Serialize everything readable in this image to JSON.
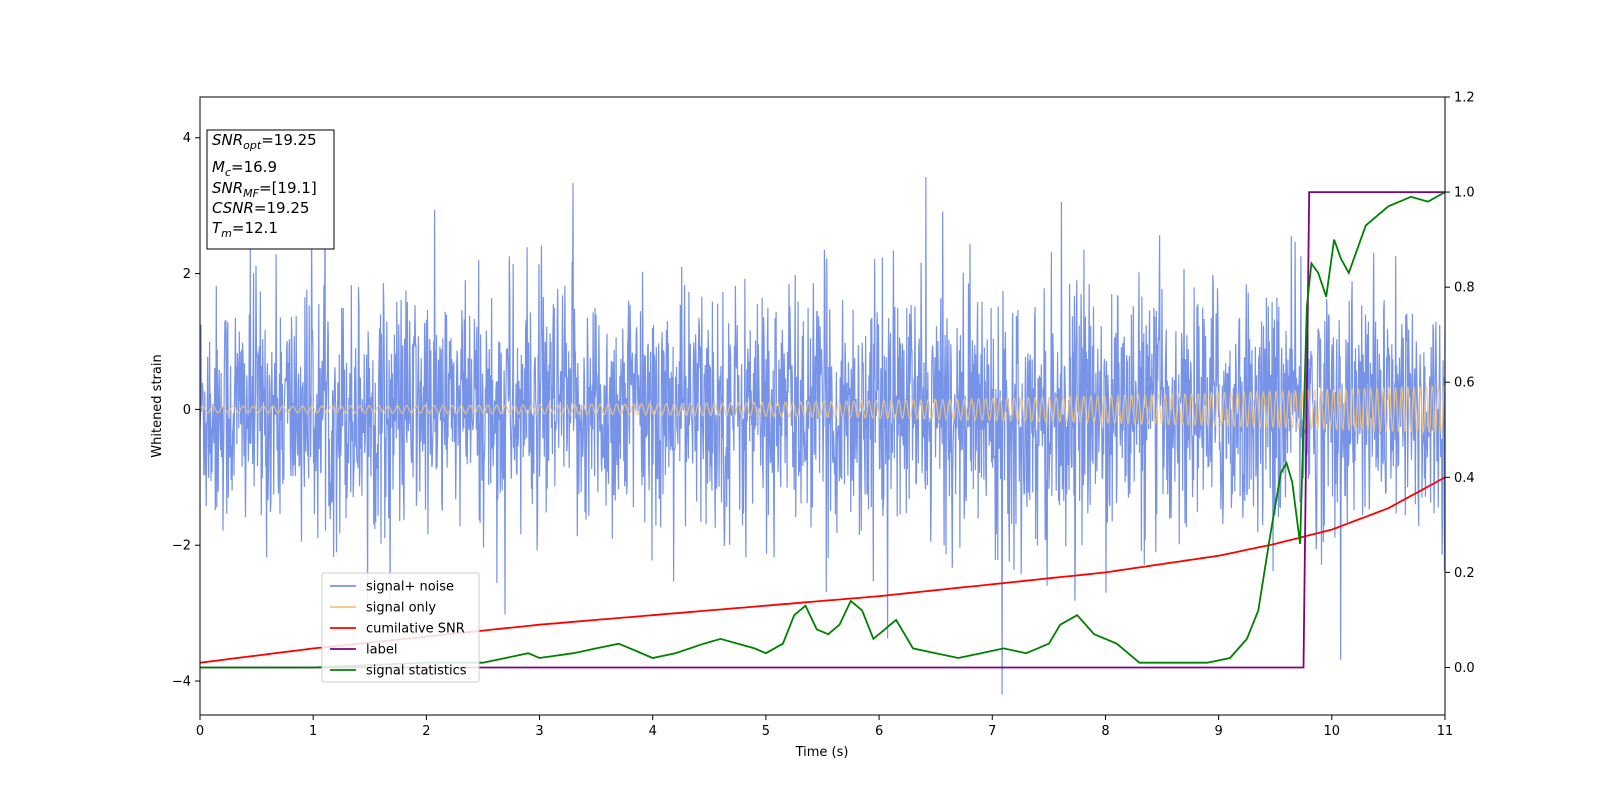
{
  "chart_data": {
    "type": "line",
    "xlabel": "Time (s)",
    "ylabel_left": "Whitened strain",
    "xlim": [
      0,
      11
    ],
    "ylim_left": [
      -4.5,
      4.6
    ],
    "ylim_right": [
      -0.1,
      1.2
    ],
    "x_ticks": [
      "0",
      "1",
      "2",
      "3",
      "4",
      "5",
      "6",
      "7",
      "8",
      "9",
      "10",
      "11"
    ],
    "y_left_ticks": [
      "−4",
      "−2",
      "0",
      "2",
      "4"
    ],
    "y_left_tick_values": [
      -4,
      -2,
      0,
      2,
      4
    ],
    "y_right_ticks": [
      "0.0",
      "0.2",
      "0.4",
      "0.6",
      "0.8",
      "1.0",
      "1.2"
    ],
    "y_right_tick_values": [
      0.0,
      0.2,
      0.4,
      0.6,
      0.8,
      1.0,
      1.2
    ],
    "grid": false,
    "legend_position": "lower-left",
    "annotation_box": {
      "lines": [
        {
          "base": "SNR",
          "sub": "opt",
          "value": "=19.25"
        },
        {
          "base": "M",
          "sub": "c",
          "value": "=16.9"
        },
        {
          "base": "SNR",
          "sub": "MF",
          "value": "=[19.1]"
        },
        {
          "base": "CSNR",
          "sub": "",
          "value": "=19.25"
        },
        {
          "base": "T",
          "sub": "m",
          "value": "=12.1"
        }
      ]
    },
    "series": [
      {
        "name": "signal+ noise",
        "axis": "left",
        "color": "#7793e8",
        "noise_amplitude_typical": 2.3,
        "noise_amplitude_max": 4.2
      },
      {
        "name": "signal only",
        "axis": "left",
        "color": "#f5c57a",
        "amplitude_start": 0.05,
        "amplitude_end": 0.35
      },
      {
        "name": "cumilative SNR",
        "axis": "right",
        "color": "#ff0000",
        "x": [
          0,
          1,
          2,
          3,
          4,
          5,
          6,
          7,
          8,
          9,
          9.5,
          10,
          10.5,
          11
        ],
        "values": [
          0.01,
          0.04,
          0.065,
          0.09,
          0.11,
          0.13,
          0.15,
          0.175,
          0.2,
          0.235,
          0.26,
          0.29,
          0.335,
          0.4
        ]
      },
      {
        "name": "label",
        "axis": "right",
        "color": "#800080",
        "x": [
          0,
          9.75,
          9.8,
          11
        ],
        "values": [
          0.0,
          0.0,
          1.0,
          1.0
        ]
      },
      {
        "name": "signal statistics",
        "axis": "right",
        "color": "#008000",
        "x": [
          0,
          1.0,
          2.0,
          2.5,
          2.7,
          2.9,
          3.0,
          3.3,
          3.5,
          3.7,
          3.8,
          4.0,
          4.2,
          4.45,
          4.6,
          4.9,
          5.0,
          5.15,
          5.25,
          5.35,
          5.45,
          5.55,
          5.65,
          5.75,
          5.85,
          5.95,
          6.05,
          6.15,
          6.3,
          6.5,
          6.7,
          6.9,
          7.1,
          7.3,
          7.5,
          7.6,
          7.75,
          7.9,
          8.1,
          8.2,
          8.3,
          8.6,
          8.9,
          9.1,
          9.25,
          9.35,
          9.45,
          9.55,
          9.6,
          9.65,
          9.72,
          9.78,
          9.82,
          9.88,
          9.95,
          10.02,
          10.08,
          10.15,
          10.3,
          10.5,
          10.7,
          10.85,
          11.0
        ],
        "values": [
          0.0,
          0.0,
          0.01,
          0.01,
          0.02,
          0.03,
          0.02,
          0.03,
          0.04,
          0.05,
          0.04,
          0.02,
          0.03,
          0.05,
          0.06,
          0.04,
          0.03,
          0.05,
          0.11,
          0.13,
          0.08,
          0.07,
          0.09,
          0.14,
          0.12,
          0.06,
          0.08,
          0.1,
          0.04,
          0.03,
          0.02,
          0.03,
          0.04,
          0.03,
          0.05,
          0.09,
          0.11,
          0.07,
          0.05,
          0.03,
          0.01,
          0.01,
          0.01,
          0.02,
          0.06,
          0.12,
          0.27,
          0.41,
          0.43,
          0.39,
          0.26,
          0.76,
          0.85,
          0.83,
          0.78,
          0.9,
          0.86,
          0.83,
          0.93,
          0.97,
          0.99,
          0.98,
          1.0
        ]
      }
    ]
  }
}
